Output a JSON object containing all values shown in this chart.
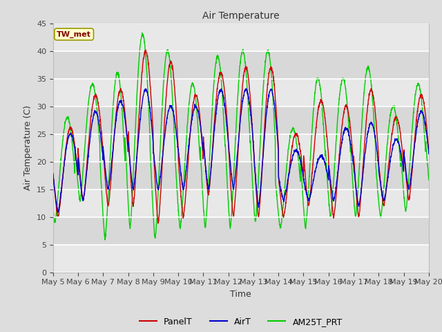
{
  "title": "Air Temperature",
  "xlabel": "Time",
  "ylabel": "Air Temperature (C)",
  "ylim": [
    0,
    45
  ],
  "yticks": [
    0,
    5,
    10,
    15,
    20,
    25,
    30,
    35,
    40,
    45
  ],
  "annotation_text": "TW_met",
  "annotation_color": "#800000",
  "annotation_bg": "#ffffcc",
  "annotation_border": "#999900",
  "legend_entries": [
    "PanelT",
    "AirT",
    "AM25T_PRT"
  ],
  "line_colors": [
    "#cc0000",
    "#0000cc",
    "#00cc00"
  ],
  "fig_bg": "#dddddd",
  "plot_bg": "#e8e8e8",
  "grid_color": "#ffffff",
  "band_colors": [
    "#e0e0e0",
    "#d0d0d0"
  ],
  "x_tick_labels": [
    "May 5",
    "May 6",
    "May 7",
    "May 8",
    "May 9",
    "May 10",
    "May 11",
    "May 12",
    "May 13",
    "May 14",
    "May 15",
    "May 16",
    "May 17",
    "May 18",
    "May 19",
    "May 20"
  ],
  "num_days": 16,
  "pts_per_day": 144
}
